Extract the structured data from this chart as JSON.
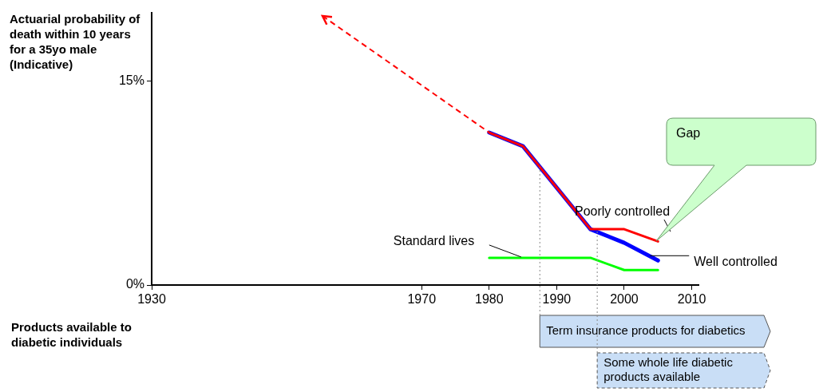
{
  "chart_data": {
    "type": "line",
    "ylabel": "Actuarial probability of death within 10 years for a 35yo male (Indicative)",
    "xlim": [
      1930,
      2011
    ],
    "xticks": [
      1930,
      1970,
      1980,
      1990,
      2000,
      2010
    ],
    "ylim": [
      0,
      20
    ],
    "yticks": [
      {
        "value": 0,
        "label": "0%"
      },
      {
        "value": 15,
        "label": "15%"
      }
    ],
    "grid": false,
    "legend": false,
    "marker": "none",
    "series": [
      {
        "name": "Poorly controlled",
        "color": "#ff0000",
        "line_style": "solid",
        "x": [
          1980,
          1985,
          1995,
          2000,
          2005
        ],
        "values": [
          11.2,
          10.2,
          4.1,
          4.1,
          3.2
        ]
      },
      {
        "name": "Well controlled",
        "color": "#0000ff",
        "line_style": "solid",
        "x": [
          1980,
          1985,
          1995,
          2000,
          2005
        ],
        "values": [
          11.2,
          10.2,
          4.1,
          3.1,
          1.8
        ]
      },
      {
        "name": "Standard lives",
        "color": "#00ff00",
        "line_style": "solid",
        "x": [
          1980,
          1995,
          2000,
          2005
        ],
        "values": [
          2,
          2,
          1.1,
          1.1
        ]
      }
    ],
    "ref_lines": [
      {
        "axis": "x",
        "value": 1987.5,
        "label": "Term insurance products for diabetics",
        "color": "#888888",
        "line_style": "dotted"
      },
      {
        "axis": "x",
        "value": 1996,
        "label": "Some whole life diabetic products available",
        "color": "#888888",
        "line_style": "dotted"
      }
    ],
    "annotations": [
      "Gap",
      "Products available to diabetic individuals"
    ]
  }
}
